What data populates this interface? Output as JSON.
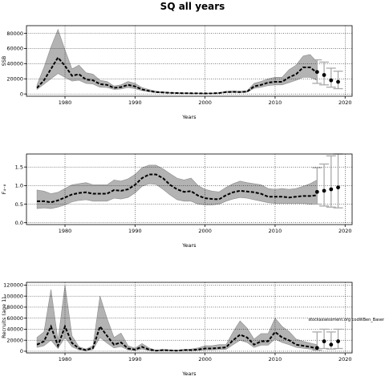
{
  "title": "SQ all years",
  "annotation": "stockassessment.org  codWBen_Baser",
  "chart_data": [
    {
      "type": "line",
      "ylabel": "SSB",
      "xlabel": "Years",
      "xlim": [
        1974.5,
        2021
      ],
      "ylim": [
        -3000,
        90000
      ],
      "x_ticks": [
        1980,
        1990,
        2000,
        2010,
        2020
      ],
      "y_ticks": [
        0,
        20000,
        40000,
        60000,
        80000
      ],
      "grid": true,
      "years": [
        1976,
        1977,
        1978,
        1979,
        1980,
        1981,
        1982,
        1983,
        1984,
        1985,
        1986,
        1987,
        1988,
        1989,
        1990,
        1991,
        1992,
        1993,
        1994,
        1995,
        1996,
        1997,
        1998,
        1999,
        2000,
        2001,
        2002,
        2003,
        2004,
        2005,
        2006,
        2007,
        2008,
        2009,
        2010,
        2011,
        2012,
        2013,
        2014,
        2015,
        2016
      ],
      "estimate": [
        8000,
        18000,
        33000,
        48000,
        37000,
        24000,
        26000,
        19000,
        18000,
        13000,
        12000,
        8000,
        9000,
        12000,
        10000,
        6000,
        4000,
        2500,
        2000,
        1500,
        1200,
        1000,
        900,
        800,
        700,
        800,
        1200,
        2500,
        2800,
        2500,
        3000,
        10000,
        12000,
        15000,
        16000,
        16000,
        22000,
        26000,
        35000,
        35000,
        28000
      ],
      "lower": [
        6000,
        13000,
        20000,
        27000,
        22000,
        17000,
        18000,
        14000,
        13000,
        9000,
        8500,
        6000,
        6500,
        8500,
        7000,
        4500,
        3000,
        1800,
        1500,
        1100,
        900,
        750,
        650,
        600,
        500,
        600,
        900,
        1800,
        2100,
        1900,
        2300,
        7500,
        9000,
        11000,
        12000,
        12000,
        15000,
        18000,
        22000,
        22000,
        18000
      ],
      "upper": [
        12000,
        35000,
        62000,
        85000,
        58000,
        33000,
        38000,
        28000,
        26000,
        18000,
        16500,
        10500,
        12000,
        16500,
        14000,
        8500,
        5800,
        3500,
        2700,
        2000,
        1600,
        1300,
        1200,
        1100,
        1000,
        1100,
        1600,
        3500,
        3900,
        3500,
        4200,
        14000,
        16500,
        20000,
        22000,
        22000,
        32000,
        38000,
        50000,
        52000,
        42000
      ],
      "projection_years": [
        2016,
        2017,
        2018,
        2019
      ],
      "projection_estimate": [
        29000,
        25000,
        18000,
        16000
      ],
      "projection_lower": [
        14000,
        12000,
        9000,
        7000
      ],
      "projection_upper": [
        45000,
        42000,
        34000,
        30000
      ]
    },
    {
      "type": "line",
      "ylabel": "F₄₋₈",
      "xlabel": "Years",
      "xlim": [
        1974.5,
        2021
      ],
      "ylim": [
        -0.05,
        1.85
      ],
      "x_ticks": [
        1980,
        1990,
        2000,
        2010,
        2020
      ],
      "y_ticks": [
        0.0,
        0.5,
        1.0,
        1.5
      ],
      "y_tick_labels": [
        "0.0",
        "0.5",
        "1.0",
        "1.5"
      ],
      "grid": true,
      "years": [
        1976,
        1977,
        1978,
        1979,
        1980,
        1981,
        1982,
        1983,
        1984,
        1985,
        1986,
        1987,
        1988,
        1989,
        1990,
        1991,
        1992,
        1993,
        1994,
        1995,
        1996,
        1997,
        1998,
        1999,
        2000,
        2001,
        2002,
        2003,
        2004,
        2005,
        2006,
        2007,
        2008,
        2009,
        2010,
        2011,
        2012,
        2013,
        2014,
        2015,
        2016
      ],
      "estimate": [
        0.58,
        0.58,
        0.55,
        0.6,
        0.68,
        0.76,
        0.8,
        0.82,
        0.78,
        0.78,
        0.78,
        0.88,
        0.86,
        0.9,
        1.02,
        1.2,
        1.3,
        1.3,
        1.2,
        1.02,
        0.9,
        0.83,
        0.85,
        0.73,
        0.66,
        0.64,
        0.63,
        0.74,
        0.82,
        0.86,
        0.84,
        0.82,
        0.78,
        0.7,
        0.7,
        0.7,
        0.68,
        0.7,
        0.72,
        0.72,
        0.74
      ],
      "lower": [
        0.38,
        0.4,
        0.38,
        0.42,
        0.48,
        0.56,
        0.6,
        0.62,
        0.58,
        0.58,
        0.58,
        0.66,
        0.64,
        0.68,
        0.8,
        0.98,
        1.05,
        1.03,
        0.9,
        0.75,
        0.62,
        0.58,
        0.58,
        0.5,
        0.48,
        0.48,
        0.5,
        0.58,
        0.64,
        0.68,
        0.66,
        0.62,
        0.58,
        0.54,
        0.52,
        0.52,
        0.52,
        0.52,
        0.52,
        0.5,
        0.5
      ],
      "upper": [
        0.88,
        0.85,
        0.78,
        0.82,
        0.92,
        1.02,
        1.05,
        1.08,
        1.02,
        1.02,
        1.02,
        1.15,
        1.12,
        1.18,
        1.3,
        1.48,
        1.55,
        1.55,
        1.45,
        1.32,
        1.2,
        1.15,
        1.2,
        1.0,
        0.9,
        0.85,
        0.83,
        0.95,
        1.05,
        1.12,
        1.08,
        1.05,
        1.02,
        0.92,
        0.9,
        0.92,
        0.9,
        0.92,
        0.98,
        1.05,
        1.15
      ],
      "projection_years": [
        2016,
        2017,
        2018,
        2019
      ],
      "projection_estimate": [
        0.83,
        0.86,
        0.9,
        0.95
      ],
      "projection_lower": [
        0.5,
        0.45,
        0.42,
        0.4
      ],
      "projection_upper": [
        1.48,
        1.58,
        1.8,
        1.85
      ]
    },
    {
      "type": "line",
      "ylabel": "Recruits (age 1)",
      "xlabel": "Years",
      "xlim": [
        1974.5,
        2021
      ],
      "ylim": [
        -3000,
        125000
      ],
      "x_ticks": [
        1980,
        1990,
        2000,
        2010,
        2020
      ],
      "y_ticks": [
        0,
        20000,
        40000,
        60000,
        80000,
        100000,
        120000
      ],
      "grid": true,
      "years": [
        1976,
        1977,
        1978,
        1979,
        1980,
        1981,
        1982,
        1983,
        1984,
        1985,
        1986,
        1987,
        1988,
        1989,
        1990,
        1991,
        1992,
        1993,
        1994,
        1995,
        1996,
        1997,
        1998,
        1999,
        2000,
        2001,
        2002,
        2003,
        2004,
        2005,
        2006,
        2007,
        2008,
        2009,
        2010,
        2011,
        2012,
        2013,
        2014,
        2015,
        2016
      ],
      "estimate": [
        12000,
        18000,
        45000,
        10000,
        45000,
        15000,
        5000,
        2000,
        6000,
        45000,
        28000,
        12000,
        16000,
        5000,
        3000,
        8000,
        3000,
        1000,
        2000,
        1500,
        1000,
        2000,
        2000,
        3000,
        5000,
        5000,
        6000,
        7000,
        20000,
        30000,
        25000,
        12000,
        18000,
        18000,
        35000,
        25000,
        20000,
        12000,
        10000,
        8000,
        5000
      ],
      "lower": [
        7000,
        10000,
        20000,
        5000,
        25000,
        8000,
        2500,
        1000,
        3000,
        25000,
        15000,
        6000,
        8500,
        2500,
        1500,
        4000,
        1500,
        500,
        1000,
        800,
        500,
        1000,
        1000,
        1500,
        2500,
        2500,
        3000,
        3500,
        12000,
        20000,
        16000,
        7000,
        11000,
        11000,
        22000,
        16000,
        12000,
        7000,
        5500,
        4000,
        2500
      ],
      "upper": [
        25000,
        35000,
        112000,
        20000,
        120000,
        28000,
        8000,
        4000,
        10000,
        100000,
        60000,
        25000,
        33000,
        10000,
        5500,
        14000,
        6000,
        2000,
        3500,
        2500,
        2000,
        3500,
        4000,
        6000,
        10000,
        10000,
        12000,
        12000,
        35000,
        55000,
        42000,
        22000,
        32000,
        32000,
        60000,
        45000,
        36000,
        22000,
        18000,
        15000,
        12000
      ],
      "projection_years": [
        2016,
        2017,
        2018,
        2019
      ],
      "projection_estimate": [
        6000,
        18000,
        12000,
        18000
      ],
      "projection_lower": [
        2000,
        5000,
        4000,
        5000
      ],
      "projection_upper": [
        35000,
        40000,
        35000,
        40000
      ]
    }
  ]
}
